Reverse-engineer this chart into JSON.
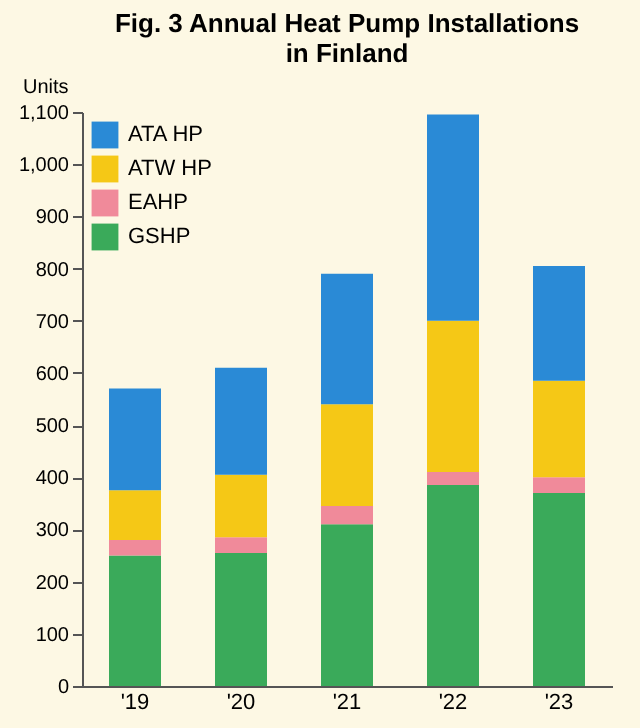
{
  "chart_data": {
    "type": "bar",
    "title": "Fig. 3  Annual Heat Pump Installations in Finland",
    "ylabel": "Units",
    "categories": [
      "'19",
      "'20",
      "'21",
      "'22",
      "'23"
    ],
    "stacked": true,
    "legend": "top left",
    "grid": false,
    "ylim": [
      0,
      1100
    ],
    "yticks": [
      0,
      100,
      200,
      300,
      400,
      500,
      600,
      700,
      800,
      900,
      {
        "value": 1000,
        "label": "1,000"
      },
      {
        "value": 1100,
        "label": "1,100"
      }
    ],
    "series": [
      {
        "name": "GSHP",
        "color": "#3aaa5a",
        "values": [
          250,
          255,
          310,
          385,
          370
        ]
      },
      {
        "name": "EAHP",
        "color": "#f08a9a",
        "values": [
          30,
          30,
          35,
          25,
          30
        ]
      },
      {
        "name": "ATW HP",
        "color": "#f5c816",
        "values": [
          95,
          120,
          195,
          290,
          185
        ]
      },
      {
        "name": "ATA HP",
        "color": "#2a8ad6",
        "values": [
          195,
          205,
          250,
          395,
          220
        ]
      }
    ]
  }
}
